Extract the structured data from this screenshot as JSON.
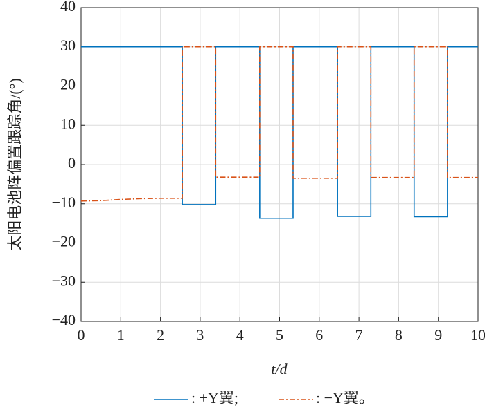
{
  "chart_data": {
    "type": "line",
    "xlabel": "t/d",
    "ylabel": "太阳电池阵偏置跟踪角/(°)",
    "xlim": [
      0,
      10
    ],
    "ylim": [
      -40,
      40
    ],
    "xticks": [
      0,
      1,
      2,
      3,
      4,
      5,
      6,
      7,
      8,
      9,
      10
    ],
    "yticks": [
      {
        "value": -40,
        "label": "−40"
      },
      {
        "value": -30,
        "label": "−30"
      },
      {
        "value": -20,
        "label": "−20"
      },
      {
        "value": -10,
        "label": "−10"
      },
      0,
      10,
      20,
      30,
      40
    ],
    "grid": true,
    "legend": "bottom",
    "series": [
      {
        "name": ": +Y翼;",
        "color": "#0072bd",
        "dash": "solid",
        "x": [
          0,
          2.55,
          2.55,
          3.39,
          3.39,
          4.5,
          4.5,
          5.34,
          5.34,
          6.46,
          6.46,
          7.3,
          7.3,
          8.39,
          8.39,
          9.23,
          9.23,
          10
        ],
        "values": [
          30,
          30,
          -10.2,
          -10.2,
          30,
          30,
          -13.7,
          -13.7,
          30,
          30,
          -13.2,
          -13.2,
          30,
          30,
          -13.3,
          -13.3,
          30,
          30
        ]
      },
      {
        "name": ": −Y翼。",
        "color": "#d95319",
        "dash": "dashdot",
        "x": [
          0,
          0.5,
          1,
          1.5,
          2,
          2.55,
          2.55,
          3.39,
          3.39,
          4.5,
          4.5,
          5.34,
          5.34,
          6.46,
          6.46,
          7.3,
          7.3,
          8.39,
          8.39,
          9.23,
          9.23,
          10
        ],
        "values": [
          -9.3,
          -9.2,
          -8.9,
          -8.7,
          -8.6,
          -8.6,
          30,
          30,
          -3.2,
          -3.2,
          30,
          30,
          -3.5,
          -3.5,
          30,
          30,
          -3.3,
          -3.3,
          30,
          30,
          -3.3,
          -3.3
        ]
      }
    ]
  }
}
